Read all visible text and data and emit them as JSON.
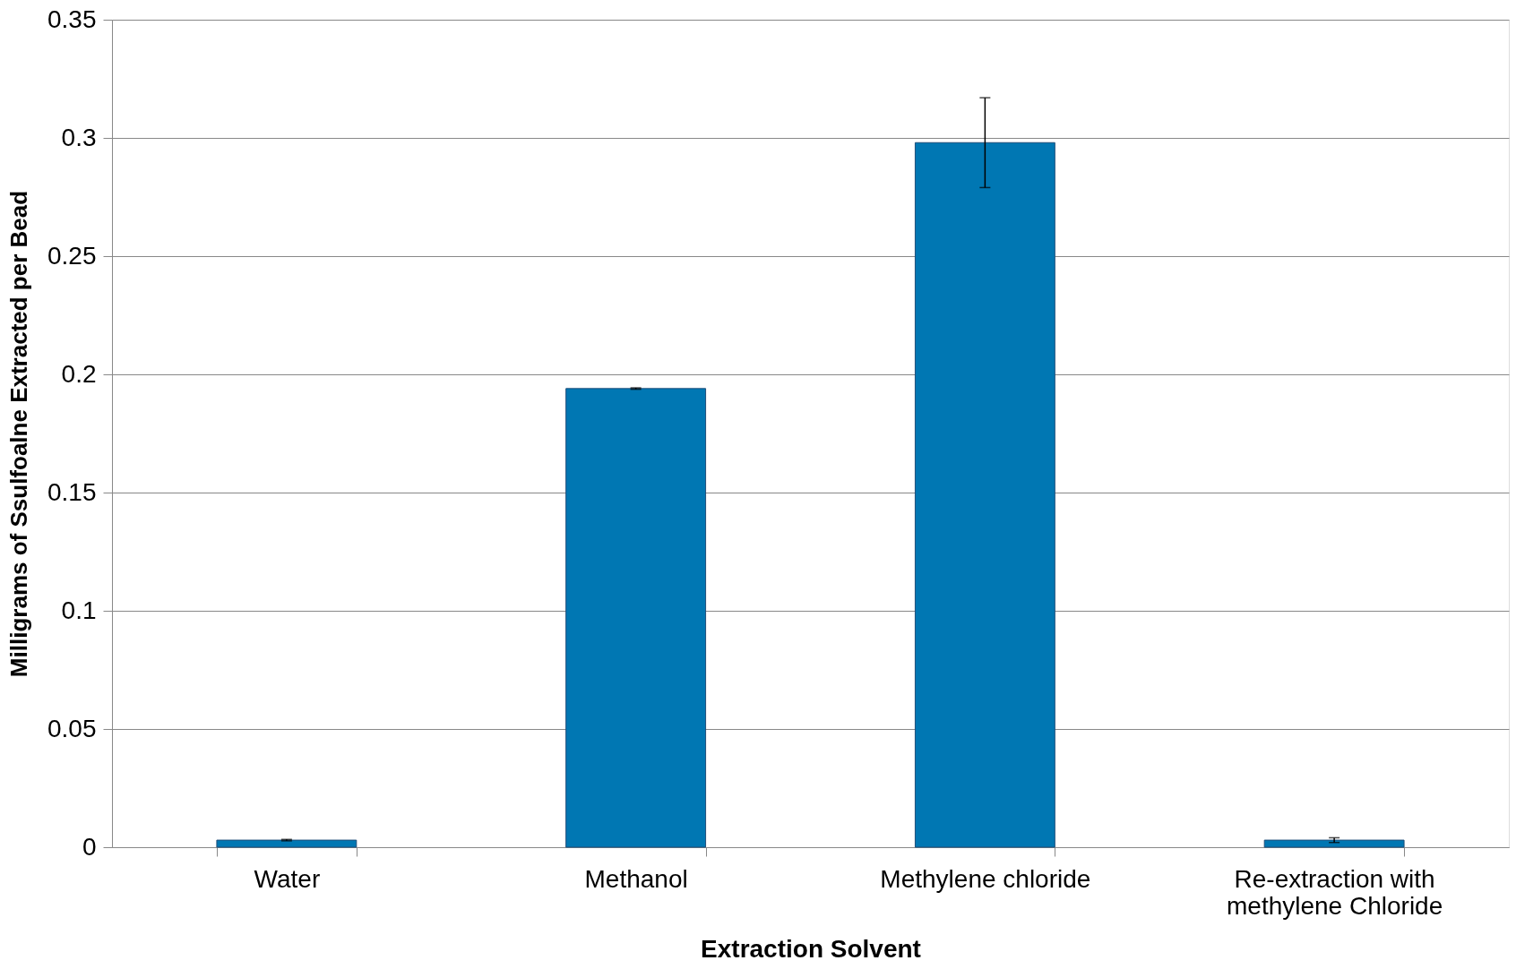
{
  "chart_data": {
    "type": "bar",
    "xlabel": "Extraction Solvent",
    "ylabel": "Milligrams of Ssulfoalne Extracted per Bead",
    "categories": [
      "Water",
      "Methanol",
      "Methylene chloride",
      "Re-extraction with\nmethylene Chloride"
    ],
    "values": [
      0.003,
      0.194,
      0.298,
      0.003
    ],
    "errors": [
      0.0003,
      0.0003,
      0.019,
      0.001
    ],
    "color": "#0077b3",
    "ylim": [
      0,
      0.35
    ],
    "yticks": [
      0,
      0.05,
      0.1,
      0.15,
      0.2,
      0.25,
      0.3,
      0.35
    ],
    "grid": "y"
  }
}
